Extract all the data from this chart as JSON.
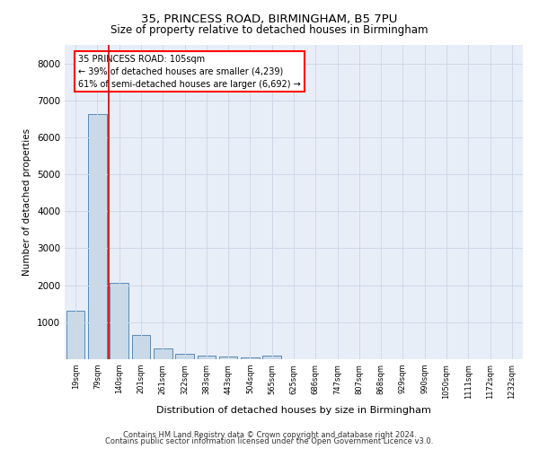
{
  "title1": "35, PRINCESS ROAD, BIRMINGHAM, B5 7PU",
  "title2": "Size of property relative to detached houses in Birmingham",
  "xlabel": "Distribution of detached houses by size in Birmingham",
  "ylabel": "Number of detached properties",
  "categories": [
    "19sqm",
    "79sqm",
    "140sqm",
    "201sqm",
    "261sqm",
    "322sqm",
    "383sqm",
    "443sqm",
    "504sqm",
    "565sqm",
    "625sqm",
    "686sqm",
    "747sqm",
    "807sqm",
    "868sqm",
    "929sqm",
    "990sqm",
    "1050sqm",
    "1111sqm",
    "1172sqm",
    "1232sqm"
  ],
  "values": [
    1310,
    6620,
    2070,
    650,
    290,
    145,
    95,
    80,
    60,
    100,
    0,
    0,
    0,
    0,
    0,
    0,
    0,
    0,
    0,
    0,
    0
  ],
  "bar_color": "#c9d9e8",
  "bar_edge_color": "#5a8ab5",
  "property_line_x": 1.5,
  "annotation_text": "35 PRINCESS ROAD: 105sqm\n← 39% of detached houses are smaller (4,239)\n61% of semi-detached houses are larger (6,692) →",
  "annotation_box_color": "white",
  "annotation_box_edge_color": "red",
  "vline_color": "#cc0000",
  "ylim": [
    0,
    8500
  ],
  "yticks": [
    0,
    1000,
    2000,
    3000,
    4000,
    5000,
    6000,
    7000,
    8000
  ],
  "grid_color": "#d0d8e8",
  "background_color": "#e8eef8",
  "footer1": "Contains HM Land Registry data © Crown copyright and database right 2024.",
  "footer2": "Contains public sector information licensed under the Open Government Licence v3.0."
}
